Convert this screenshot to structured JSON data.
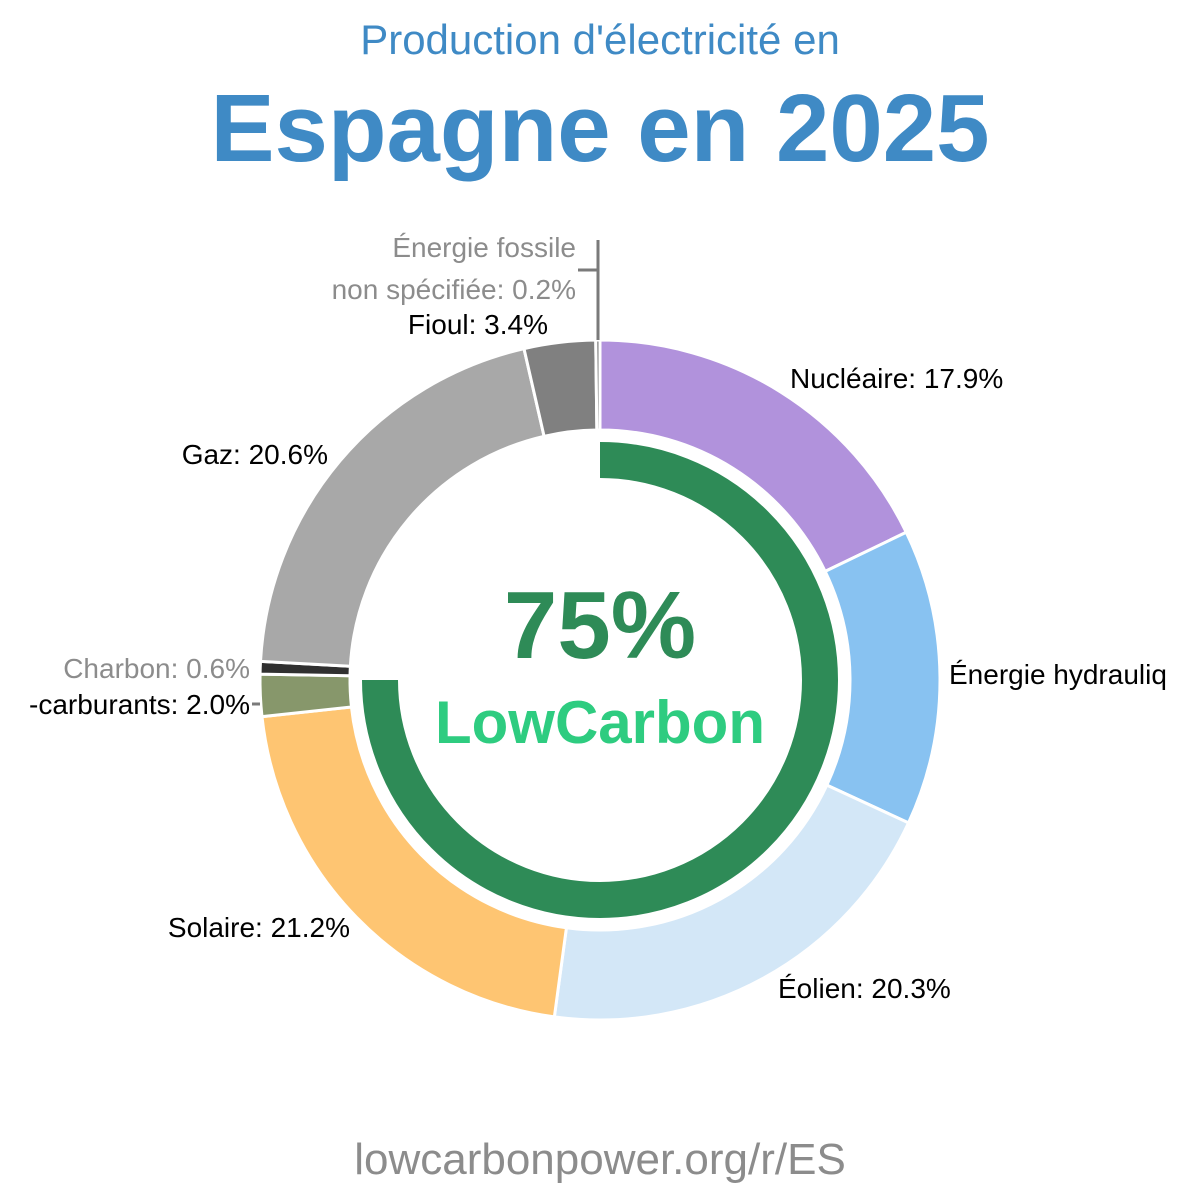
{
  "header": {
    "subtitle": "Production d'électricité en",
    "title": "Espagne en 2025"
  },
  "center": {
    "low_carbon_value": "75%",
    "low_carbon_fraction": 0.75,
    "brand": "LowCarbon"
  },
  "footer": {
    "url": "lowcarbonpower.org/r/ES"
  },
  "colors": {
    "title": "#3f8ac5",
    "low_carbon_ring": "#2e8b57",
    "brand": "#2ecc80",
    "footer": "#8c8c8c"
  },
  "chart_data": {
    "type": "pie",
    "series": [
      {
        "name": "Nucléaire",
        "value": 17.9,
        "label": "Nucléaire: 17.9%",
        "color": "#b192dc",
        "label_color": "#000000"
      },
      {
        "name": "Énergie hydraulique",
        "value": 14.1,
        "label": "Énergie hydrauliq",
        "color": "#88c2f1",
        "label_color": "#000000"
      },
      {
        "name": "Éolien",
        "value": 20.3,
        "label": "Éolien: 20.3%",
        "color": "#d3e7f7",
        "label_color": "#000000"
      },
      {
        "name": "Solaire",
        "value": 21.2,
        "label": "Solaire: 21.2%",
        "color": "#fec572",
        "label_color": "#000000"
      },
      {
        "name": "Bio-carburants",
        "value": 2.0,
        "label": "-carburants: 2.0%",
        "color": "#87976b",
        "label_color": "#000000"
      },
      {
        "name": "Charbon",
        "value": 0.6,
        "label": "Charbon: 0.6%",
        "color": "#303030",
        "label_color": "#8c8c8c"
      },
      {
        "name": "Gaz",
        "value": 20.6,
        "label": "Gaz: 20.6%",
        "color": "#a8a8a8",
        "label_color": "#000000"
      },
      {
        "name": "Fioul",
        "value": 3.4,
        "label": "Fioul: 3.4%",
        "color": "#808080",
        "label_color": "#000000"
      },
      {
        "name": "Énergie fossile non spécifiée",
        "value": 0.2,
        "label_lines": [
          "Énergie fossile",
          "non spécifiée: 0.2%"
        ],
        "color": "#7a7a7a",
        "label_color": "#8c8c8c"
      }
    ]
  }
}
